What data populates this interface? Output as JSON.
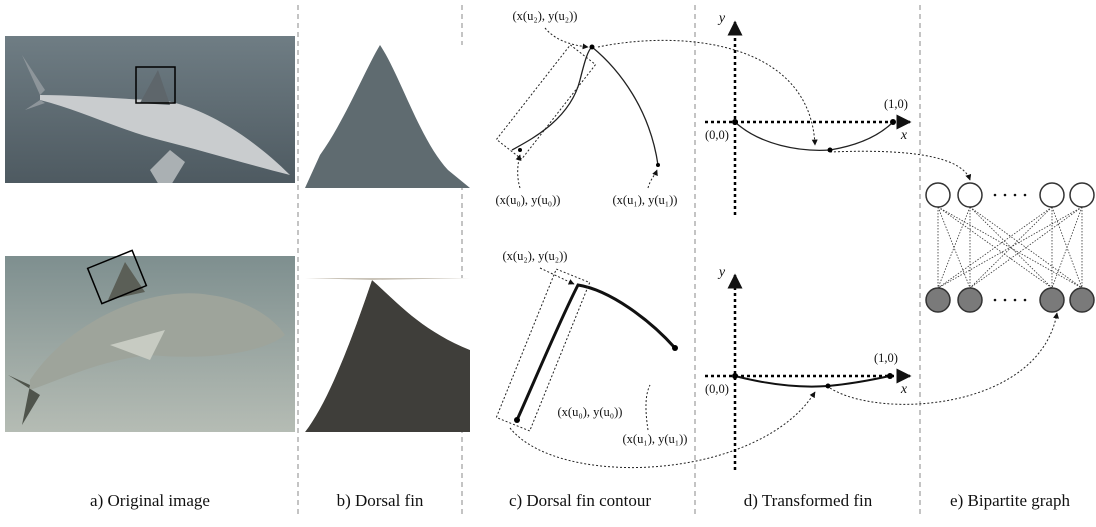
{
  "panels": [
    {
      "caption": "a) Original image"
    },
    {
      "caption": "b) Dorsal fin"
    },
    {
      "caption": "c) Dorsal fin contour"
    },
    {
      "caption": "d) Transformed fin"
    },
    {
      "caption": "e) Bipartite graph"
    }
  ],
  "contour_labels": {
    "top": [
      "(x(u₂), y(u₂))",
      "(x(u₀), y(u₀))",
      "(x(u₁), y(u₁))"
    ],
    "bottom": [
      "(x(u₂), y(u₂))",
      "(x(u₀), y(u₀))",
      "(x(u₁), y(u₁))"
    ]
  },
  "axes": {
    "top": {
      "y": "y",
      "x": "x",
      "origin": "(0,0)",
      "end": "(1,0)"
    },
    "bottom": {
      "y": "y",
      "x": "x",
      "origin": "(0,0)",
      "end": "(1,0)"
    }
  }
}
